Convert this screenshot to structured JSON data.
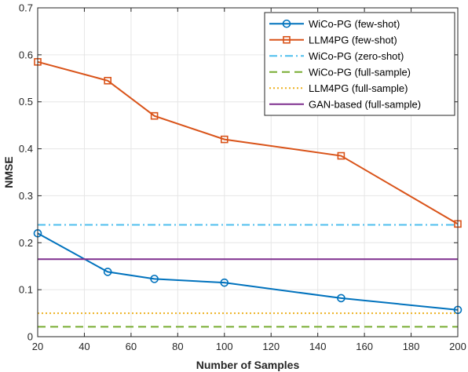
{
  "chart_data": {
    "type": "line",
    "xlabel": "Number of Samples",
    "ylabel": "NMSE",
    "xlim": [
      20,
      200
    ],
    "ylim": [
      0,
      0.7
    ],
    "xticks": [
      20,
      40,
      60,
      80,
      100,
      120,
      140,
      160,
      180,
      200
    ],
    "yticks": [
      0,
      0.1,
      0.2,
      0.3,
      0.4,
      0.5,
      0.6,
      0.7
    ],
    "xtick_labels": [
      "20",
      "40",
      "60",
      "80",
      "100",
      "120",
      "140",
      "160",
      "180",
      "200"
    ],
    "ytick_labels": [
      "0",
      "0.1",
      "0.2",
      "0.3",
      "0.4",
      "0.5",
      "0.6",
      "0.7"
    ],
    "grid": true,
    "legend_position": "top-right",
    "series": [
      {
        "name": "WiCo-PG (few-shot)",
        "color": "#0072BD",
        "style": "solid",
        "marker": "circle",
        "x": [
          20,
          50,
          70,
          100,
          150,
          200
        ],
        "y": [
          0.22,
          0.138,
          0.123,
          0.115,
          0.082,
          0.057
        ]
      },
      {
        "name": "LLM4PG (few-shot)",
        "color": "#D95319",
        "style": "solid",
        "marker": "square",
        "x": [
          20,
          50,
          70,
          100,
          150,
          200
        ],
        "y": [
          0.585,
          0.545,
          0.47,
          0.42,
          0.385,
          0.24
        ]
      },
      {
        "name": "WiCo-PG (zero-shot)",
        "color": "#4DBEEE",
        "style": "dashdot",
        "marker": "none",
        "x": [
          20,
          200
        ],
        "y": [
          0.238,
          0.238
        ]
      },
      {
        "name": "WiCo-PG (full-sample)",
        "color": "#77AC30",
        "style": "dashed",
        "marker": "none",
        "x": [
          20,
          200
        ],
        "y": [
          0.021,
          0.021
        ]
      },
      {
        "name": "LLM4PG (full-sample)",
        "color": "#EDB120",
        "style": "dotted",
        "marker": "none",
        "x": [
          20,
          200
        ],
        "y": [
          0.05,
          0.05
        ]
      },
      {
        "name": "GAN-based (full-sample)",
        "color": "#7E2F8E",
        "style": "solid",
        "marker": "none",
        "x": [
          20,
          200
        ],
        "y": [
          0.165,
          0.165
        ]
      }
    ]
  }
}
